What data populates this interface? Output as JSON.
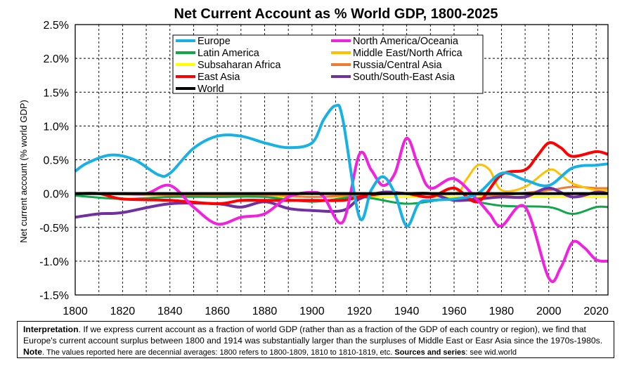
{
  "chart_data": {
    "type": "line",
    "title": "Net Current Account as % World GDP, 1800-2025",
    "xlabel": "",
    "ylabel": "Net current account (% world GDP)",
    "xlim": [
      1800,
      2025
    ],
    "ylim": [
      -1.5,
      2.5
    ],
    "x_ticks": [
      1800,
      1820,
      1840,
      1860,
      1880,
      1900,
      1920,
      1940,
      1960,
      1980,
      2000,
      2020
    ],
    "y_ticks": [
      -1.5,
      -1.0,
      -0.5,
      0.0,
      0.5,
      1.0,
      1.5,
      2.0,
      2.5
    ],
    "y_tick_labels": [
      "-1.5%",
      "-1.0%",
      "-0.5%",
      "0.0%",
      "0.5%",
      "1.0%",
      "1.5%",
      "2.0%",
      "2.5%"
    ],
    "grid": true,
    "legend_position": "top-center",
    "series": [
      {
        "name": "Europe",
        "color": "#17b1e4",
        "width": 4,
        "x": [
          1800,
          1805,
          1815,
          1825,
          1835,
          1840,
          1850,
          1860,
          1870,
          1880,
          1890,
          1900,
          1905,
          1910,
          1913,
          1920,
          1925,
          1930,
          1935,
          1940,
          1945,
          1950,
          1960,
          1970,
          1980,
          1990,
          2000,
          2010,
          2020,
          2025
        ],
        "y": [
          0.33,
          0.45,
          0.57,
          0.5,
          0.28,
          0.3,
          0.67,
          0.85,
          0.85,
          0.75,
          0.68,
          0.75,
          1.1,
          1.3,
          1.1,
          -0.35,
          0.05,
          0.25,
          0.0,
          -0.48,
          -0.15,
          -0.1,
          -0.08,
          0.0,
          0.3,
          0.2,
          0.12,
          0.38,
          0.42,
          0.44
        ]
      },
      {
        "name": "North America/Oceania",
        "color": "#f022e0",
        "width": 4,
        "x": [
          1800,
          1810,
          1820,
          1830,
          1840,
          1850,
          1860,
          1870,
          1880,
          1890,
          1900,
          1905,
          1913,
          1920,
          1925,
          1930,
          1935,
          1940,
          1945,
          1950,
          1960,
          1970,
          1975,
          1980,
          1990,
          2000,
          2005,
          2010,
          2015,
          2020,
          2025
        ],
        "y": [
          0.0,
          0.0,
          0.0,
          0.0,
          0.12,
          -0.2,
          -0.45,
          -0.35,
          -0.3,
          -0.05,
          0.02,
          -0.05,
          -0.42,
          0.58,
          0.35,
          0.12,
          0.3,
          0.82,
          0.4,
          0.08,
          0.22,
          -0.1,
          -0.3,
          -0.48,
          -0.2,
          -1.25,
          -1.1,
          -0.72,
          -0.8,
          -0.98,
          -1.0
        ]
      },
      {
        "name": "Latin America",
        "color": "#10a64a",
        "width": 3,
        "x": [
          1800,
          1820,
          1840,
          1860,
          1880,
          1900,
          1920,
          1940,
          1960,
          1980,
          2000,
          2010,
          2020,
          2025
        ],
        "y": [
          -0.03,
          -0.08,
          -0.05,
          -0.05,
          -0.05,
          -0.12,
          -0.05,
          -0.15,
          -0.08,
          -0.18,
          -0.2,
          -0.3,
          -0.2,
          -0.2
        ]
      },
      {
        "name": "Middle East/North Africa",
        "color": "#ffc000",
        "width": 3,
        "x": [
          1800,
          1900,
          1940,
          1960,
          1965,
          1970,
          1975,
          1980,
          1990,
          2000,
          2005,
          2010,
          2020,
          2025
        ],
        "y": [
          0.0,
          0.0,
          0.0,
          0.0,
          0.2,
          0.42,
          0.35,
          0.05,
          0.1,
          0.35,
          0.28,
          0.15,
          0.05,
          0.05
        ]
      },
      {
        "name": "Subsaharan Africa",
        "color": "#ffff00",
        "width": 3,
        "x": [
          1800,
          1900,
          1940,
          1960,
          1980,
          2000,
          2020,
          2025
        ],
        "y": [
          0.0,
          -0.05,
          -0.05,
          -0.05,
          -0.05,
          -0.05,
          -0.05,
          -0.05
        ]
      },
      {
        "name": "Russia/Central Asia",
        "color": "#ed7d31",
        "width": 3,
        "x": [
          1800,
          1840,
          1880,
          1900,
          1920,
          1940,
          1960,
          1980,
          2000,
          2010,
          2020,
          2025
        ],
        "y": [
          0.0,
          -0.02,
          -0.02,
          -0.05,
          -0.02,
          0.0,
          0.0,
          -0.02,
          0.05,
          0.1,
          0.08,
          0.08
        ]
      },
      {
        "name": "East Asia",
        "color": "#ff0000",
        "width": 4,
        "x": [
          1800,
          1810,
          1820,
          1840,
          1860,
          1870,
          1880,
          1900,
          1913,
          1920,
          1930,
          1940,
          1950,
          1960,
          1970,
          1980,
          1990,
          1995,
          2000,
          2005,
          2010,
          2020,
          2025
        ],
        "y": [
          0.0,
          0.0,
          -0.08,
          -0.1,
          -0.15,
          -0.1,
          -0.1,
          -0.1,
          -0.1,
          -0.05,
          0.0,
          0.0,
          -0.05,
          0.08,
          -0.12,
          0.28,
          0.35,
          0.55,
          0.75,
          0.68,
          0.55,
          0.62,
          0.58
        ]
      },
      {
        "name": "South/South-East Asia",
        "color": "#7030a0",
        "width": 4,
        "x": [
          1800,
          1810,
          1820,
          1840,
          1860,
          1870,
          1880,
          1890,
          1900,
          1913,
          1920,
          1930,
          1940,
          1950,
          1960,
          1970,
          1980,
          1990,
          2000,
          2010,
          2020,
          2025
        ],
        "y": [
          -0.35,
          -0.3,
          -0.28,
          -0.15,
          -0.15,
          -0.2,
          -0.12,
          -0.22,
          -0.25,
          -0.25,
          -0.08,
          0.02,
          0.0,
          0.0,
          -0.1,
          -0.08,
          -0.05,
          -0.05,
          0.08,
          -0.05,
          0.02,
          0.0
        ]
      },
      {
        "name": "World",
        "color": "#000000",
        "width": 4,
        "x": [
          1800,
          2025
        ],
        "y": [
          0.0,
          0.0
        ]
      }
    ]
  },
  "note": {
    "interpretation_label": "Interpretation",
    "interpretation_text": ". If we express current account as a fraction of world GDP (rather than as a fraction of the GDP of each country or region), we find that Europe's current account surplus between 1800 and 1914 was substantially larger than the surpluses of Middle East or Easr Asia since the 1970s-1980s. ",
    "note_label": "Note",
    "note_text": ". The values reported here are decennial averages: 1800 refers to 1800-1809, 1810 to 1810-1819, etc. ",
    "sources_label": "Sources and series",
    "sources_text": ": see wid.world"
  }
}
